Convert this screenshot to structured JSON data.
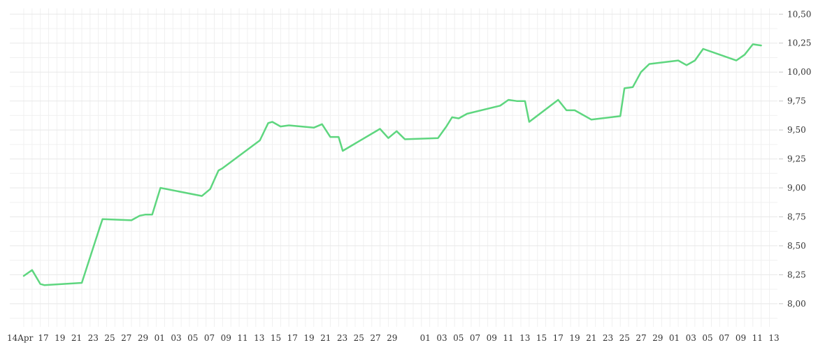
{
  "chart_data": {
    "type": "line",
    "title": "",
    "xlabel": "",
    "ylabel": "",
    "x_tick_labels": [
      "14Apr",
      "17",
      "19",
      "21",
      "23",
      "25",
      "27",
      "29",
      "01",
      "03",
      "05",
      "07",
      "09",
      "11",
      "13",
      "15",
      "17",
      "19",
      "21",
      "23",
      "25",
      "27",
      "29",
      "",
      "01",
      "03",
      "05",
      "07",
      "09",
      "11",
      "13",
      "15",
      "17",
      "19",
      "21",
      "23",
      "25",
      "27",
      "29",
      "01",
      "03",
      "05",
      "07",
      "09",
      "11",
      "13"
    ],
    "ylim": [
      7.8,
      10.55
    ],
    "y_ticks": [
      8.0,
      8.25,
      8.5,
      8.75,
      9.0,
      9.25,
      9.5,
      9.75,
      10.0,
      10.25,
      10.5
    ],
    "y_tick_labels": [
      "8,00",
      "8,25",
      "8,50",
      "8,75",
      "9,00",
      "9,25",
      "9,50",
      "9,75",
      "10,00",
      "10,25",
      "10,50"
    ],
    "y_axis_position": "right",
    "grid": true,
    "line_color": "#5ed67f",
    "series": [
      {
        "values": [
          [
            1.0,
            8.24
          ],
          [
            2.0,
            8.29
          ],
          [
            3.0,
            8.17
          ],
          [
            3.5,
            8.16
          ],
          [
            8.0,
            8.18
          ],
          [
            10.0,
            8.62
          ],
          [
            10.5,
            8.73
          ],
          [
            14.0,
            8.72
          ],
          [
            15.0,
            8.76
          ],
          [
            15.7,
            8.77
          ],
          [
            16.5,
            8.77
          ],
          [
            17.5,
            9.0
          ],
          [
            22.5,
            8.93
          ],
          [
            23.5,
            8.99
          ],
          [
            24.5,
            9.15
          ],
          [
            25.0,
            9.17
          ],
          [
            29.5,
            9.41
          ],
          [
            30.5,
            9.56
          ],
          [
            31.0,
            9.57
          ],
          [
            32.0,
            9.53
          ],
          [
            33.0,
            9.54
          ],
          [
            36.0,
            9.52
          ],
          [
            37.0,
            9.55
          ],
          [
            38.0,
            9.44
          ],
          [
            39.0,
            9.44
          ],
          [
            39.5,
            9.32
          ],
          [
            44.0,
            9.51
          ],
          [
            45.0,
            9.43
          ],
          [
            46.0,
            9.49
          ],
          [
            47.0,
            9.42
          ],
          [
            51.0,
            9.43
          ],
          [
            52.0,
            9.53
          ],
          [
            52.7,
            9.61
          ],
          [
            53.5,
            9.6
          ],
          [
            54.5,
            9.64
          ],
          [
            58.5,
            9.71
          ],
          [
            59.5,
            9.76
          ],
          [
            60.5,
            9.75
          ],
          [
            61.5,
            9.75
          ],
          [
            62.0,
            9.57
          ],
          [
            65.5,
            9.76
          ],
          [
            66.5,
            9.67
          ],
          [
            67.5,
            9.67
          ],
          [
            69.5,
            9.59
          ],
          [
            73.0,
            9.62
          ],
          [
            73.5,
            9.86
          ],
          [
            74.5,
            9.87
          ],
          [
            75.5,
            10.0
          ],
          [
            76.5,
            10.07
          ],
          [
            80.0,
            10.1
          ],
          [
            81.0,
            10.06
          ],
          [
            82.0,
            10.1
          ],
          [
            83.0,
            10.2
          ],
          [
            87.0,
            10.1
          ],
          [
            88.0,
            10.15
          ],
          [
            89.0,
            10.24
          ],
          [
            90.0,
            10.23
          ]
        ]
      }
    ]
  }
}
